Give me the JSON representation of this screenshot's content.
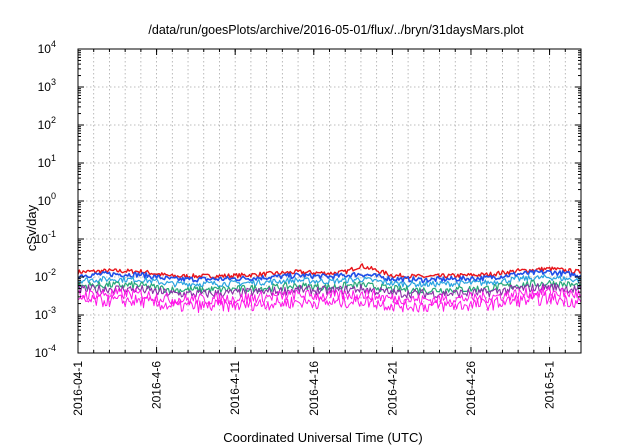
{
  "chart_data": {
    "type": "line",
    "title": "/data/run/goesPlots/archive/2016-05-01/flux/../bryn/31daysMars.plot",
    "xlabel": "Coordinated Universal Time (UTC)",
    "ylabel": "cSv/day",
    "y_scale": "log",
    "ylim": [
      0.0001,
      10000
    ],
    "xlim": [
      "2016-04-01",
      "2016-05-03"
    ],
    "grid": true,
    "legend": "none",
    "y_ticks": [
      {
        "base": "10",
        "exp": "4"
      },
      {
        "base": "10",
        "exp": "3"
      },
      {
        "base": "10",
        "exp": "2"
      },
      {
        "base": "10",
        "exp": "1"
      },
      {
        "base": "10",
        "exp": "0"
      },
      {
        "base": "10",
        "exp": "-1"
      },
      {
        "base": "10",
        "exp": "-2"
      },
      {
        "base": "10",
        "exp": "-3"
      },
      {
        "base": "10",
        "exp": "-4"
      }
    ],
    "x_ticks": [
      "2016-04-1",
      "2016-4-6",
      "2016-4-11",
      "2016-4-16",
      "2016-4-21",
      "2016-4-26",
      "2016-5-1"
    ],
    "series": [
      {
        "color": "#e8141a",
        "x": [
          "2016-04-01",
          "2016-04-03",
          "2016-04-05",
          "2016-04-07",
          "2016-04-09",
          "2016-04-11",
          "2016-04-13",
          "2016-04-15",
          "2016-04-17",
          "2016-04-18",
          "2016-04-19",
          "2016-04-21",
          "2016-04-23",
          "2016-04-25",
          "2016-04-27",
          "2016-04-29",
          "2016-05-01",
          "2016-05-03"
        ],
        "y": [
          0.0135,
          0.0145,
          0.014,
          0.0105,
          0.0105,
          0.0108,
          0.012,
          0.0135,
          0.0125,
          0.0135,
          0.02,
          0.011,
          0.0102,
          0.0108,
          0.0115,
          0.0145,
          0.0165,
          0.0135
        ]
      },
      {
        "color": "#1f4ee8",
        "x": [
          "2016-04-01",
          "2016-04-03",
          "2016-04-05",
          "2016-04-07",
          "2016-04-09",
          "2016-04-11",
          "2016-04-13",
          "2016-04-15",
          "2016-04-17",
          "2016-04-18",
          "2016-04-19",
          "2016-04-21",
          "2016-04-23",
          "2016-04-25",
          "2016-04-27",
          "2016-04-29",
          "2016-05-01",
          "2016-05-03"
        ],
        "y": [
          0.011,
          0.012,
          0.0115,
          0.0087,
          0.0087,
          0.009,
          0.0098,
          0.011,
          0.0102,
          0.011,
          0.012,
          0.009,
          0.0084,
          0.0089,
          0.0094,
          0.012,
          0.0135,
          0.011
        ]
      },
      {
        "color": "#29a3e0",
        "x": [
          "2016-04-01",
          "2016-04-03",
          "2016-04-05",
          "2016-04-07",
          "2016-04-09",
          "2016-04-11",
          "2016-04-13",
          "2016-04-15",
          "2016-04-17",
          "2016-04-18",
          "2016-04-19",
          "2016-04-21",
          "2016-04-23",
          "2016-04-25",
          "2016-04-27",
          "2016-04-29",
          "2016-05-01",
          "2016-05-03"
        ],
        "y": [
          0.0082,
          0.0088,
          0.0085,
          0.0066,
          0.0066,
          0.0068,
          0.0074,
          0.0082,
          0.0076,
          0.0082,
          0.0088,
          0.0068,
          0.0064,
          0.0067,
          0.0071,
          0.0088,
          0.0098,
          0.0082
        ]
      },
      {
        "color": "#27a878",
        "x": [
          "2016-04-01",
          "2016-04-03",
          "2016-04-05",
          "2016-04-07",
          "2016-04-09",
          "2016-04-11",
          "2016-04-13",
          "2016-04-15",
          "2016-04-17",
          "2016-04-18",
          "2016-04-19",
          "2016-04-21",
          "2016-04-23",
          "2016-04-25",
          "2016-04-27",
          "2016-04-29",
          "2016-05-01",
          "2016-05-03"
        ],
        "y": [
          0.0058,
          0.0062,
          0.006,
          0.0046,
          0.0046,
          0.0048,
          0.0052,
          0.0058,
          0.0054,
          0.0058,
          0.0062,
          0.0048,
          0.0045,
          0.0047,
          0.005,
          0.0062,
          0.007,
          0.0058
        ]
      },
      {
        "color": "#8a2ea6",
        "x": [
          "2016-04-01",
          "2016-04-03",
          "2016-04-05",
          "2016-04-07",
          "2016-04-09",
          "2016-04-11",
          "2016-04-13",
          "2016-04-15",
          "2016-04-17",
          "2016-04-18",
          "2016-04-19",
          "2016-04-21",
          "2016-04-23",
          "2016-04-25",
          "2016-04-27",
          "2016-04-29",
          "2016-05-01",
          "2016-05-03"
        ],
        "y": [
          0.0046,
          0.0049,
          0.0047,
          0.0036,
          0.0036,
          0.0038,
          0.0041,
          0.0046,
          0.0043,
          0.0046,
          0.0049,
          0.0038,
          0.0036,
          0.0037,
          0.0039,
          0.0049,
          0.0055,
          0.0046
        ]
      },
      {
        "color": "#ff14e8",
        "x": [
          "2016-04-01",
          "2016-04-03",
          "2016-04-05",
          "2016-04-07",
          "2016-04-09",
          "2016-04-11",
          "2016-04-13",
          "2016-04-15",
          "2016-04-17",
          "2016-04-18",
          "2016-04-19",
          "2016-04-21",
          "2016-04-23",
          "2016-04-25",
          "2016-04-27",
          "2016-04-29",
          "2016-05-01",
          "2016-05-03"
        ],
        "y": [
          0.0034,
          0.0036,
          0.0035,
          0.0026,
          0.0026,
          0.0027,
          0.003,
          0.0034,
          0.0031,
          0.0034,
          0.0036,
          0.0027,
          0.0025,
          0.0027,
          0.0029,
          0.0036,
          0.0041,
          0.0034
        ]
      },
      {
        "color": "#ff14e8",
        "x": [
          "2016-04-01",
          "2016-04-03",
          "2016-04-05",
          "2016-04-07",
          "2016-04-09",
          "2016-04-11",
          "2016-04-13",
          "2016-04-15",
          "2016-04-17",
          "2016-04-18",
          "2016-04-19",
          "2016-04-21",
          "2016-04-23",
          "2016-04-25",
          "2016-04-27",
          "2016-04-29",
          "2016-05-01",
          "2016-05-03"
        ],
        "y": [
          0.0022,
          0.0024,
          0.0023,
          0.0017,
          0.0017,
          0.0018,
          0.002,
          0.0022,
          0.0021,
          0.0022,
          0.0024,
          0.0018,
          0.0017,
          0.0018,
          0.0019,
          0.0024,
          0.0027,
          0.0022
        ]
      }
    ]
  }
}
